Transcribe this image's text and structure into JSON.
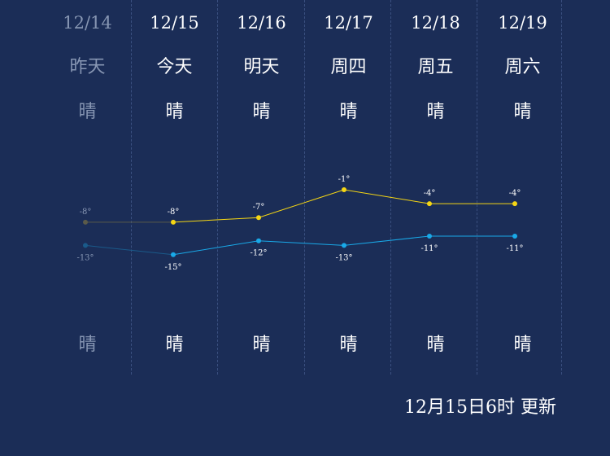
{
  "days": [
    {
      "date": "12/14",
      "day": "昨天",
      "weather_day": "晴",
      "weather_night": "晴",
      "past": true
    },
    {
      "date": "12/15",
      "day": "今天",
      "weather_day": "晴",
      "weather_night": "晴",
      "past": false
    },
    {
      "date": "12/16",
      "day": "明天",
      "weather_day": "晴",
      "weather_night": "晴",
      "past": false
    },
    {
      "date": "12/17",
      "day": "周四",
      "weather_day": "晴",
      "weather_night": "晴",
      "past": false
    },
    {
      "date": "12/18",
      "day": "周五",
      "weather_day": "晴",
      "weather_night": "晴",
      "past": false
    },
    {
      "date": "12/19",
      "day": "周六",
      "weather_day": "晴",
      "weather_night": "晴",
      "past": false
    }
  ],
  "updated_text": "12月15日6时 更新",
  "colors": {
    "background": "#1b2d57",
    "high_line": "#f5d614",
    "low_line": "#19a9e8",
    "past_text": "#8796b3",
    "past_high": "#5a5a4a",
    "past_low": "#1a5a8a"
  },
  "chart_data": {
    "type": "line",
    "categories": [
      "12/14",
      "12/15",
      "12/16",
      "12/17",
      "12/18",
      "12/19"
    ],
    "series": [
      {
        "values": [
          -8,
          -8,
          -7,
          -1,
          -4,
          -4
        ],
        "labels": [
          "-8°",
          "-8°",
          "-7°",
          "-1°",
          "-4°",
          "-4°"
        ]
      },
      {
        "values": [
          -13,
          -15,
          -12,
          -13,
          -11,
          -11
        ],
        "labels": [
          "-13°",
          "-15°",
          "-12°",
          "-13°",
          "-11°",
          "-11°"
        ]
      }
    ]
  }
}
